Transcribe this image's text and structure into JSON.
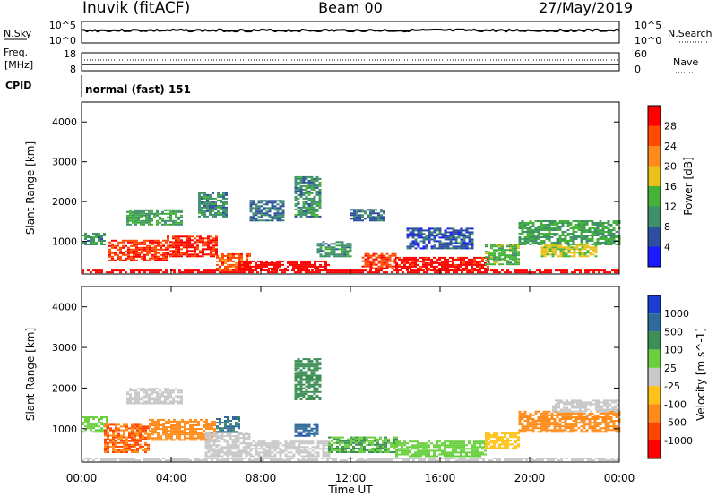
{
  "header": {
    "station": "Inuvik (fitACF)",
    "beam": "Beam 00",
    "date": "27/May/2019"
  },
  "top_panels": {
    "nsky_label": "N.Sky",
    "nsearch_label": "N.Search",
    "noise_ticks": [
      "10^5",
      "10^0"
    ],
    "freq_label_1": "Freq.",
    "freq_label_2": "[MHz]",
    "freq_ticks": [
      "18",
      "8"
    ],
    "nave_label": "Nave",
    "nave_ticks": [
      "60",
      "0"
    ],
    "cpid_label": "CPID",
    "cpid_value": "normal (fast) 151"
  },
  "time_axis": {
    "label": "Time UT",
    "ticks": [
      "00:00",
      "04:00",
      "08:00",
      "12:00",
      "16:00",
      "20:00",
      "00:00"
    ]
  },
  "colors": {
    "power": [
      "#1a1aff",
      "#2e4fa0",
      "#3f8f6a",
      "#45b33a",
      "#e8c21a",
      "#ff8c1a",
      "#ff4a00",
      "#ff0000"
    ],
    "velocity": [
      "#1a3fd0",
      "#2e6a9a",
      "#3d8f55",
      "#6ad040",
      "#c8c8c8",
      "#ffc21a",
      "#ff8c1a",
      "#ff4400",
      "#ff0000"
    ]
  },
  "chart_data": [
    {
      "type": "heatmap",
      "title": "Power",
      "xlabel": "Time UT",
      "ylabel": "Slant Range [km]",
      "xlim": [
        0,
        24
      ],
      "ylim": [
        180,
        4500
      ],
      "yticks": [
        1000,
        2000,
        3000,
        4000
      ],
      "colorbar": {
        "label": "Power [dB]",
        "ticks": [
          "4",
          "8",
          "12",
          "16",
          "20",
          "24",
          "28"
        ],
        "range": [
          0,
          32
        ]
      },
      "regions": [
        {
          "t": [
            0.0,
            24.0
          ],
          "r": [
            200,
            260
          ],
          "value": 31
        },
        {
          "t": [
            0.0,
            1.0
          ],
          "r": [
            900,
            1200
          ],
          "value": 10
        },
        {
          "t": [
            1.2,
            3.8
          ],
          "r": [
            500,
            1000
          ],
          "value": 27
        },
        {
          "t": [
            3.8,
            6.0
          ],
          "r": [
            600,
            1100
          ],
          "value": 29
        },
        {
          "t": [
            6.0,
            7.5
          ],
          "r": [
            250,
            700
          ],
          "value": 26
        },
        {
          "t": [
            7.0,
            11.0
          ],
          "r": [
            250,
            500
          ],
          "value": 31
        },
        {
          "t": [
            2.0,
            4.5
          ],
          "r": [
            1400,
            1800
          ],
          "value": 12
        },
        {
          "t": [
            5.2,
            6.5
          ],
          "r": [
            1600,
            2200
          ],
          "value": 10
        },
        {
          "t": [
            7.5,
            9.0
          ],
          "r": [
            1500,
            2000
          ],
          "value": 8
        },
        {
          "t": [
            9.5,
            10.6
          ],
          "r": [
            1600,
            2600
          ],
          "value": 10
        },
        {
          "t": [
            10.5,
            12.0
          ],
          "r": [
            600,
            1000
          ],
          "value": 10
        },
        {
          "t": [
            12.0,
            13.5
          ],
          "r": [
            1500,
            1800
          ],
          "value": 7
        },
        {
          "t": [
            12.5,
            14.0
          ],
          "r": [
            300,
            700
          ],
          "value": 27
        },
        {
          "t": [
            14.0,
            18.2
          ],
          "r": [
            250,
            600
          ],
          "value": 30
        },
        {
          "t": [
            14.5,
            17.5
          ],
          "r": [
            800,
            1300
          ],
          "value": 6
        },
        {
          "t": [
            18.0,
            19.5
          ],
          "r": [
            400,
            900
          ],
          "value": 14
        },
        {
          "t": [
            19.5,
            24.0
          ],
          "r": [
            900,
            1500
          ],
          "value": 12
        },
        {
          "t": [
            20.5,
            23.0
          ],
          "r": [
            600,
            900
          ],
          "value": 17
        }
      ]
    },
    {
      "type": "heatmap",
      "title": "Velocity",
      "xlabel": "Time UT",
      "ylabel": "Slant Range [km]",
      "xlim": [
        0,
        24
      ],
      "ylim": [
        180,
        4500
      ],
      "yticks": [
        1000,
        2000,
        3000,
        4000
      ],
      "colorbar": {
        "label": "Velocity [m s^-1]",
        "ticks": [
          "1000",
          "500",
          "100",
          "25",
          "-25",
          "-100",
          "-500",
          "-1000"
        ]
      },
      "regions": [
        {
          "t": [
            0.0,
            24.0
          ],
          "r": [
            200,
            260
          ],
          "value": 0
        },
        {
          "t": [
            0.0,
            1.2
          ],
          "r": [
            900,
            1300
          ],
          "value": 50
        },
        {
          "t": [
            1.0,
            3.0
          ],
          "r": [
            400,
            1100
          ],
          "value": -500
        },
        {
          "t": [
            3.0,
            6.0
          ],
          "r": [
            700,
            1200
          ],
          "value": -300
        },
        {
          "t": [
            2.0,
            4.5
          ],
          "r": [
            1600,
            2000
          ],
          "value": 0
        },
        {
          "t": [
            5.5,
            7.5
          ],
          "r": [
            300,
            900
          ],
          "value": 0
        },
        {
          "t": [
            7.5,
            11.0
          ],
          "r": [
            300,
            700
          ],
          "value": 0
        },
        {
          "t": [
            6.0,
            7.0
          ],
          "r": [
            900,
            1300
          ],
          "value": 600
        },
        {
          "t": [
            9.5,
            10.5
          ],
          "r": [
            800,
            1100
          ],
          "value": 800
        },
        {
          "t": [
            9.5,
            10.6
          ],
          "r": [
            1700,
            2700
          ],
          "value": 150
        },
        {
          "t": [
            11.0,
            14.0
          ],
          "r": [
            400,
            800
          ],
          "value": 100
        },
        {
          "t": [
            14.0,
            18.0
          ],
          "r": [
            300,
            700
          ],
          "value": 50
        },
        {
          "t": [
            18.0,
            19.5
          ],
          "r": [
            500,
            900
          ],
          "value": -50
        },
        {
          "t": [
            19.5,
            24.0
          ],
          "r": [
            900,
            1400
          ],
          "value": -300
        },
        {
          "t": [
            21.0,
            24.0
          ],
          "r": [
            1400,
            1700
          ],
          "value": 0
        }
      ]
    }
  ]
}
